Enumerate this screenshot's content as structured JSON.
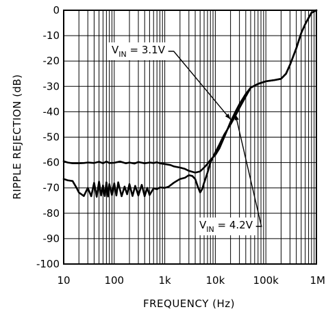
{
  "chart_data": {
    "type": "line",
    "title": "",
    "xlabel": "FREQUENCY (Hz)",
    "ylabel": "RIPPLE REJECTION (dB)",
    "xscale": "log",
    "xlim": [
      10,
      1000000
    ],
    "ylim": [
      -100,
      0
    ],
    "grid": true,
    "x_ticks": [
      {
        "value": 10,
        "label": "10"
      },
      {
        "value": 100,
        "label": "100"
      },
      {
        "value": 1000,
        "label": "1k"
      },
      {
        "value": 10000,
        "label": "10k"
      },
      {
        "value": 100000,
        "label": "100k"
      },
      {
        "value": 1000000,
        "label": "1M"
      }
    ],
    "y_ticks": [
      {
        "value": 0,
        "label": "0"
      },
      {
        "value": -10,
        "label": "-10"
      },
      {
        "value": -20,
        "label": "-20"
      },
      {
        "value": -30,
        "label": "-30"
      },
      {
        "value": -40,
        "label": "-40"
      },
      {
        "value": -50,
        "label": "-50"
      },
      {
        "value": -60,
        "label": "-60"
      },
      {
        "value": -70,
        "label": "-70"
      },
      {
        "value": -80,
        "label": "-80"
      },
      {
        "value": -90,
        "label": "-90"
      },
      {
        "value": -100,
        "label": "-100"
      }
    ],
    "annotations": [
      {
        "text_main": "V",
        "text_sub": "IN",
        "text_rest": " = 3.1V",
        "series": 0
      },
      {
        "text_main": "V",
        "text_sub": "IN",
        "text_rest": " = 4.2V",
        "series": 1
      }
    ],
    "series": [
      {
        "name": "VIN = 3.1V",
        "x": [
          10,
          12,
          15,
          20,
          25,
          30,
          40,
          50,
          60,
          70,
          80,
          100,
          130,
          170,
          200,
          250,
          300,
          400,
          500,
          600,
          700,
          800,
          1000,
          1300,
          1500,
          2000,
          2500,
          3000,
          4000,
          5000,
          6000,
          7000,
          8000,
          10000,
          12000,
          15000,
          20000,
          25000,
          30000,
          40000,
          50000,
          70000,
          100000,
          150000,
          200000,
          250000,
          300000,
          400000,
          500000,
          600000,
          700000,
          800000,
          1000000
        ],
        "y": [
          -59.5,
          -60,
          -60.3,
          -60.3,
          -60.2,
          -60,
          -60.2,
          -59.7,
          -60.3,
          -59.6,
          -60.2,
          -60.1,
          -59.6,
          -60.3,
          -60,
          -60.4,
          -59.8,
          -60.3,
          -60,
          -60.2,
          -59.9,
          -60.3,
          -60.6,
          -61,
          -61.5,
          -62,
          -62.5,
          -63.3,
          -64,
          -63.5,
          -62,
          -60.5,
          -59,
          -57,
          -54.5,
          -50,
          -44,
          -40,
          -37,
          -33,
          -30.5,
          -29,
          -28,
          -27.5,
          -27,
          -25,
          -21.5,
          -15,
          -9,
          -5.5,
          -3,
          -1,
          0
        ]
      },
      {
        "name": "VIN = 4.2V",
        "x": [
          10,
          12,
          15,
          18,
          20,
          25,
          30,
          35,
          40,
          45,
          50,
          55,
          60,
          65,
          70,
          75,
          80,
          90,
          100,
          110,
          120,
          140,
          160,
          180,
          200,
          230,
          260,
          300,
          350,
          400,
          450,
          500,
          600,
          700,
          800,
          1000,
          1200,
          1500,
          2000,
          2500,
          3000,
          3500,
          4000,
          4500,
          5000,
          5500,
          6000,
          7000,
          8000,
          10000,
          12000,
          15000,
          20000,
          25000,
          30000,
          40000,
          50000,
          70000,
          100000,
          150000,
          200000,
          250000,
          300000,
          400000,
          500000,
          600000,
          700000,
          800000,
          1000000
        ],
        "y": [
          -66.5,
          -67,
          -67.3,
          -70,
          -71.8,
          -73.2,
          -70,
          -73.3,
          -68,
          -73.5,
          -67.5,
          -73,
          -69,
          -73.2,
          -67.8,
          -73.4,
          -68.5,
          -72.8,
          -68.2,
          -73,
          -67.8,
          -73.3,
          -69.5,
          -72.5,
          -68.5,
          -73.2,
          -69.2,
          -73,
          -68.8,
          -73.3,
          -70,
          -72.8,
          -70.2,
          -70.5,
          -69.8,
          -70,
          -69.5,
          -68,
          -66.5,
          -66,
          -65,
          -65.3,
          -66.5,
          -69.5,
          -71.8,
          -70.5,
          -68,
          -64,
          -60,
          -56,
          -53,
          -49,
          -45,
          -41.5,
          -38.5,
          -34,
          -30.5,
          -29,
          -28,
          -27.5,
          -27,
          -25,
          -21.5,
          -15,
          -9,
          -5.5,
          -3,
          -1,
          0
        ]
      }
    ]
  }
}
